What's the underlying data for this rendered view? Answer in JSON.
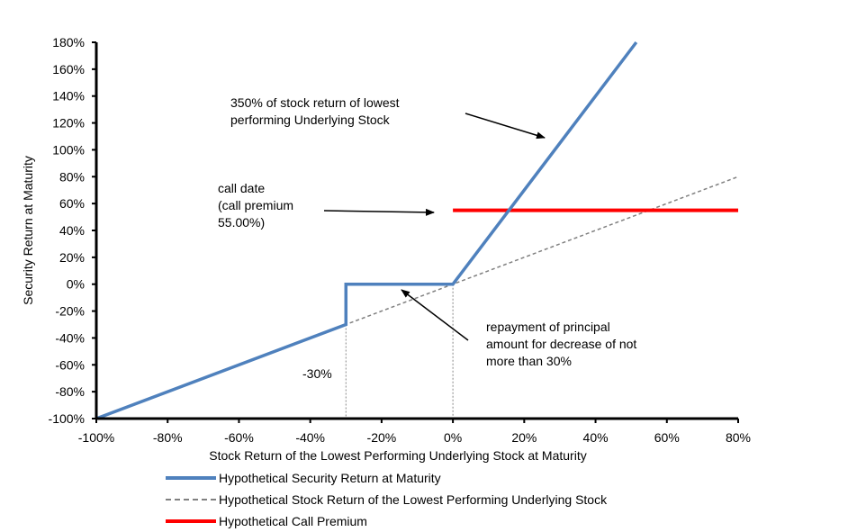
{
  "chart_data": {
    "type": "line",
    "title": "",
    "xlabel": "Stock Return of the Lowest Performing Underlying Stock at Maturity",
    "ylabel": "Security Return at Maturity",
    "xlim": [
      -100,
      80
    ],
    "ylim": [
      -100,
      180
    ],
    "x_ticks": [
      "-100%",
      "-80%",
      "-60%",
      "-40%",
      "-20%",
      "0%",
      "20%",
      "40%",
      "60%",
      "80%"
    ],
    "x_tick_values": [
      -100,
      -80,
      -60,
      -40,
      -20,
      0,
      20,
      40,
      60,
      80
    ],
    "y_ticks": [
      "-100%",
      "-80%",
      "-60%",
      "-40%",
      "-20%",
      "0%",
      "20%",
      "40%",
      "60%",
      "80%",
      "100%",
      "120%",
      "140%",
      "160%",
      "180%"
    ],
    "y_tick_values": [
      -100,
      -80,
      -60,
      -40,
      -20,
      0,
      20,
      40,
      60,
      80,
      100,
      120,
      140,
      160,
      180
    ],
    "grid": false,
    "legend_position": "bottom",
    "series": [
      {
        "name": "Hypothetical Security Return at Maturity",
        "color": "#4f81bd",
        "style": "solid",
        "x": [
          -100,
          -30,
          -30,
          0,
          51.43
        ],
        "y": [
          -100,
          -30,
          0,
          0,
          180
        ]
      },
      {
        "name": "Hypothetical Stock Return of the Lowest Performing Underlying Stock",
        "color": "#808080",
        "style": "dashed",
        "x": [
          -100,
          80
        ],
        "y": [
          -100,
          80
        ]
      },
      {
        "name": "Hypothetical Call Premium",
        "color": "#ff0000",
        "style": "solid",
        "x": [
          0,
          80
        ],
        "y": [
          55,
          55
        ]
      }
    ],
    "reference_lines": [
      {
        "x": -30
      },
      {
        "x": 0
      }
    ],
    "annotations": [
      {
        "text": "350% of stock return of lowest\nperforming Underlying Stock"
      },
      {
        "text": "call date\n(call premium\n55.00%)"
      },
      {
        "text": "repayment of principal\namount for decrease of not\nmore than 30%"
      },
      {
        "text": "-30%"
      }
    ]
  }
}
